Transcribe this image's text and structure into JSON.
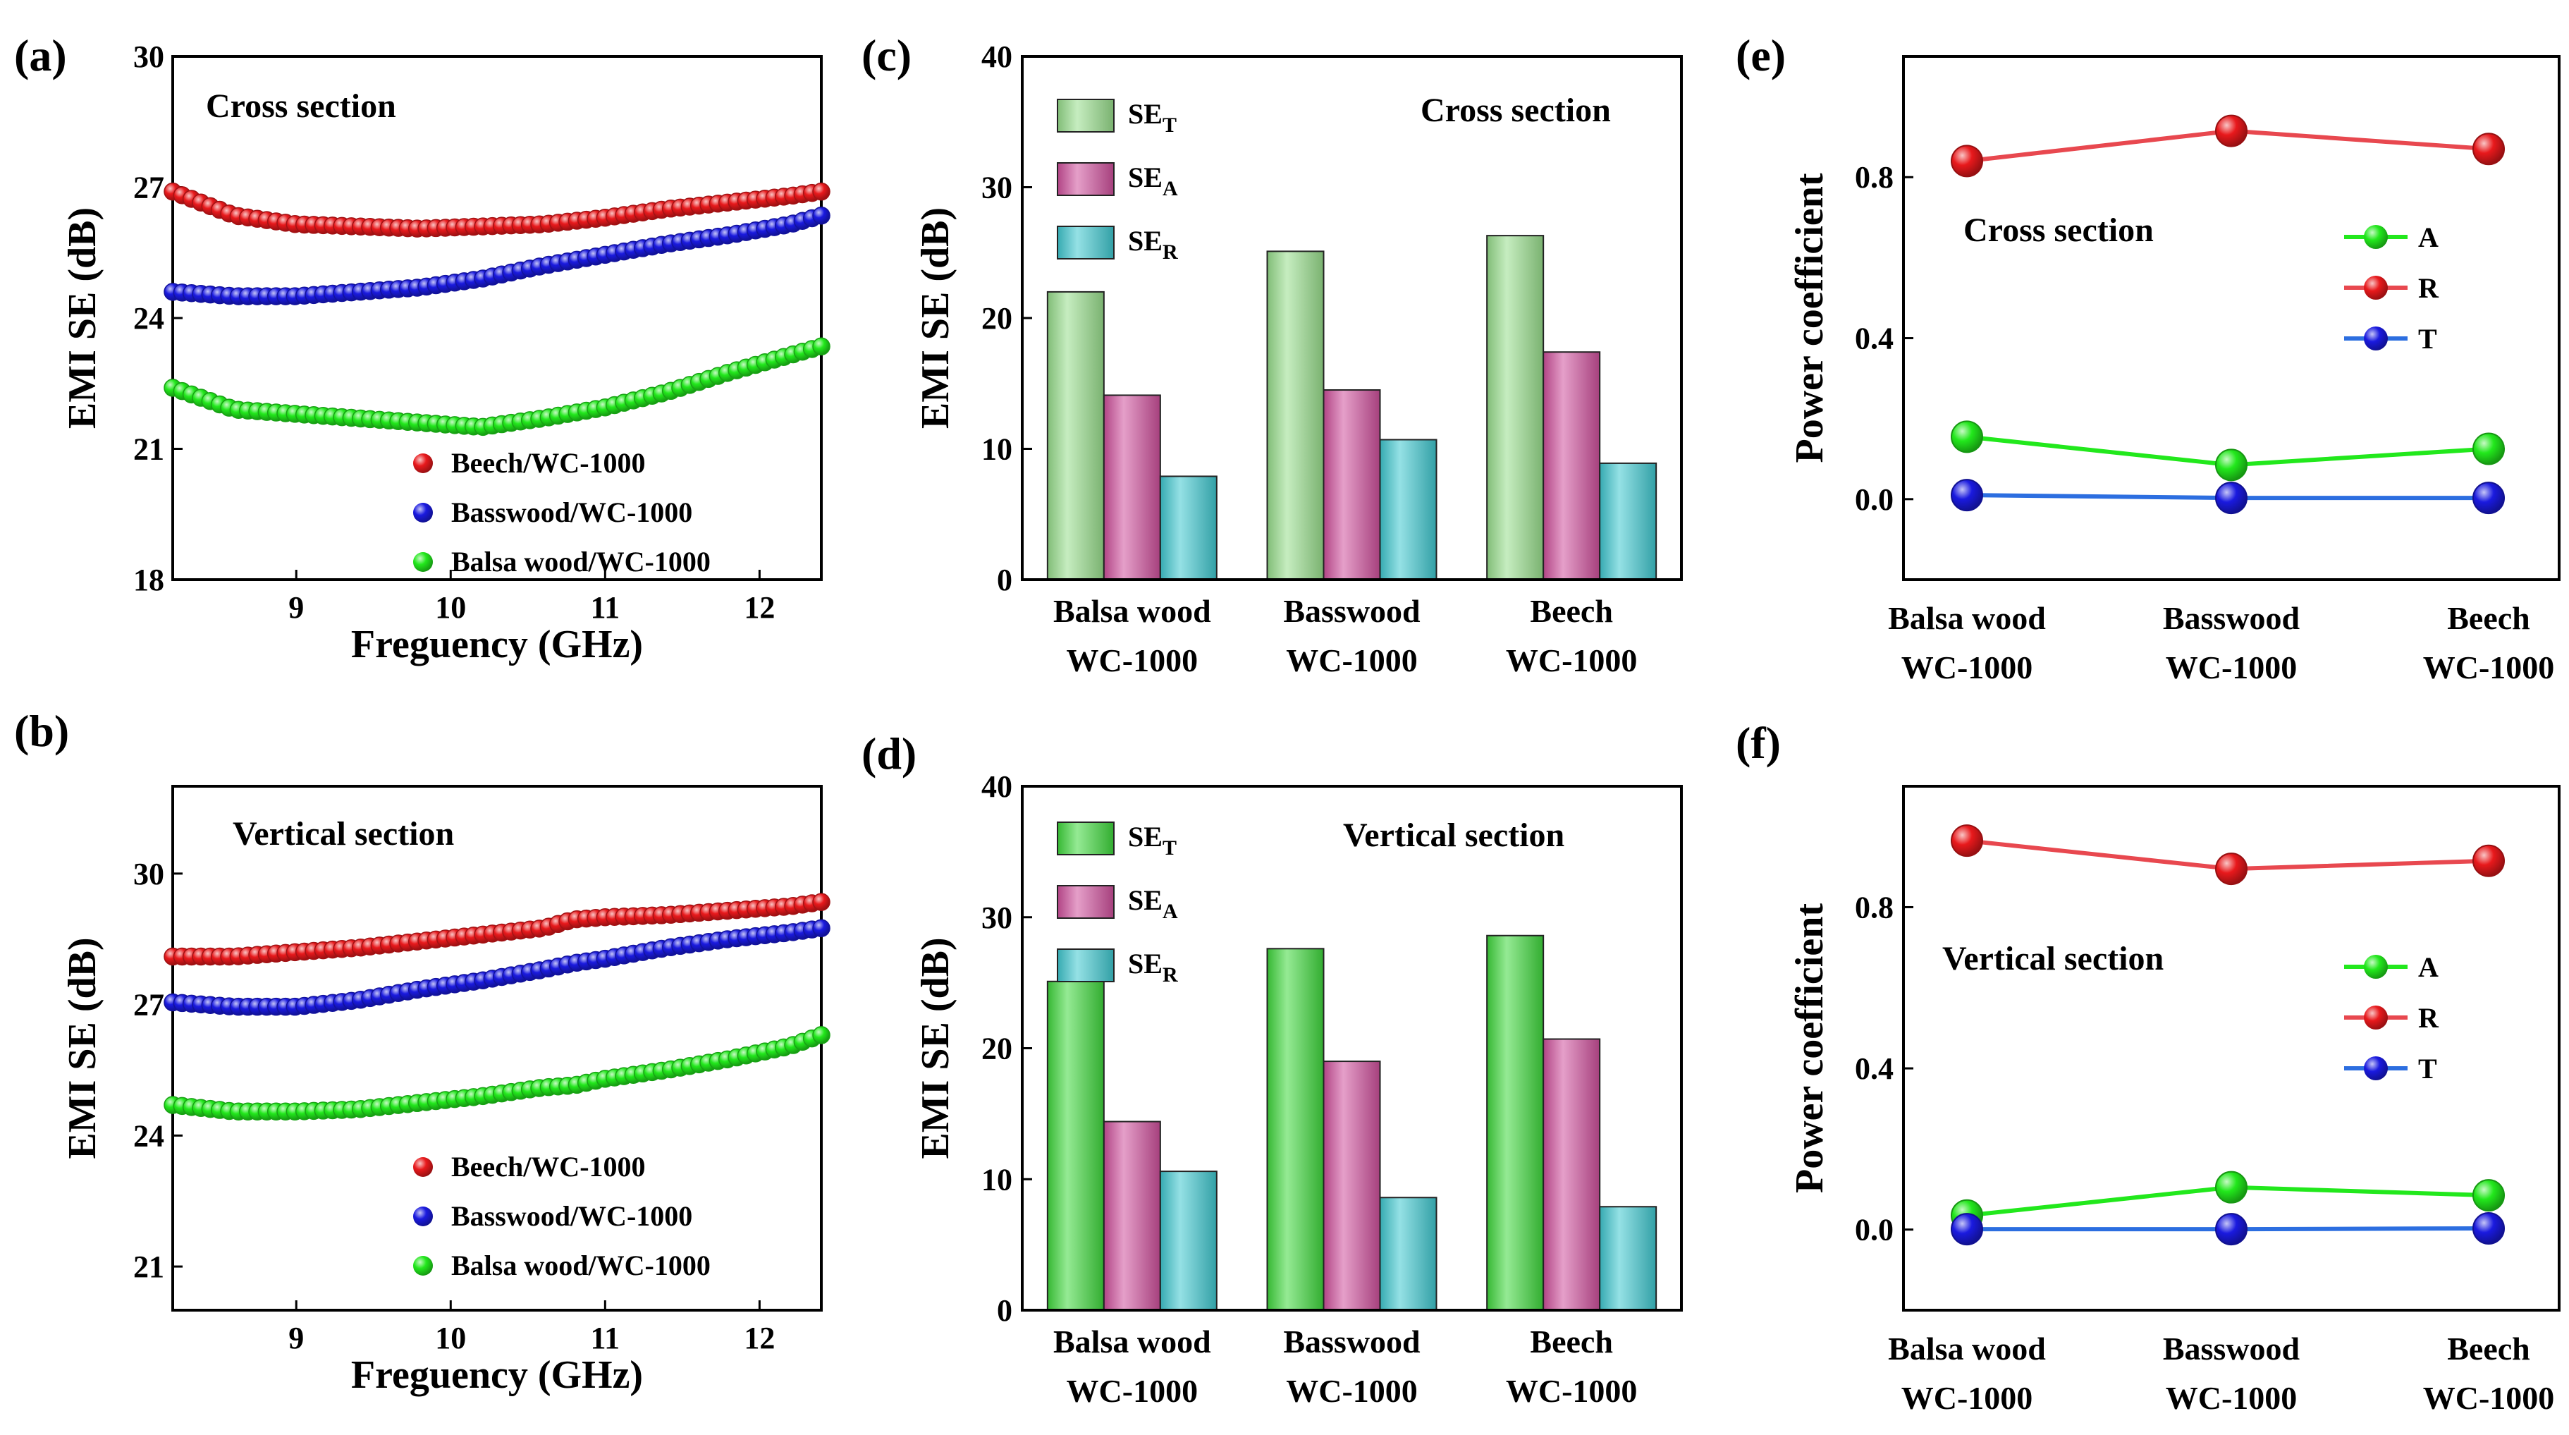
{
  "panels": {
    "a": {
      "letter": "(a)"
    },
    "b": {
      "letter": "(b)"
    },
    "c": {
      "letter": "(c)"
    },
    "d": {
      "letter": "(d)"
    },
    "e": {
      "letter": "(e)"
    },
    "f": {
      "letter": "(f)"
    }
  },
  "colors": {
    "red": "#e8191c",
    "blue": "#1a1adf",
    "green": "#22e81c",
    "bar_total_c": "#98de8c",
    "bar_total_d": "#3fd83c",
    "bar_abs": "#d0509c",
    "bar_ref": "#3fc8d0",
    "line_red": "#e8484f",
    "line_blue": "#2c6ee0",
    "line_green": "#22e81c"
  },
  "chart_data": [
    {
      "id": "a",
      "type": "line",
      "title": "Cross section",
      "xlabel": "Freguency (GHz)",
      "ylabel": "EMI SE (dB)",
      "xlim": [
        8.2,
        12.4
      ],
      "ylim": [
        18,
        30
      ],
      "xticks": [
        "9",
        "10",
        "11",
        "12"
      ],
      "yticks": [
        "18",
        "21",
        "24",
        "27",
        "30"
      ],
      "x": [
        8.2,
        8.6,
        9.0,
        9.4,
        9.8,
        10.2,
        10.6,
        11.0,
        11.4,
        11.8,
        12.2,
        12.4
      ],
      "series": [
        {
          "name": "Beech/WC-1000",
          "color": "red",
          "values": [
            26.9,
            26.35,
            26.15,
            26.1,
            26.05,
            26.1,
            26.15,
            26.3,
            26.5,
            26.65,
            26.8,
            26.9
          ]
        },
        {
          "name": "Basswood/WC-1000",
          "color": "blue",
          "values": [
            24.6,
            24.5,
            24.5,
            24.6,
            24.7,
            24.9,
            25.2,
            25.45,
            25.7,
            25.9,
            26.15,
            26.35
          ]
        },
        {
          "name": "Balsa wood/WC-1000",
          "color": "green",
          "values": [
            22.4,
            21.9,
            21.8,
            21.7,
            21.6,
            21.5,
            21.7,
            21.95,
            22.3,
            22.75,
            23.15,
            23.35
          ]
        }
      ]
    },
    {
      "id": "b",
      "type": "line",
      "title": "Vertical section",
      "xlabel": "Freguency (GHz)",
      "ylabel": "EMI SE (dB)",
      "xlim": [
        8.2,
        12.4
      ],
      "ylim": [
        20,
        32
      ],
      "xticks": [
        "9",
        "10",
        "11",
        "12"
      ],
      "yticks": [
        "21",
        "24",
        "27",
        "30"
      ],
      "x": [
        8.2,
        8.6,
        9.0,
        9.4,
        9.8,
        10.2,
        10.6,
        10.8,
        11.0,
        11.4,
        11.8,
        12.2,
        12.4
      ],
      "series": [
        {
          "name": "Beech/WC-1000",
          "color": "red",
          "values": [
            28.1,
            28.1,
            28.2,
            28.3,
            28.45,
            28.6,
            28.75,
            28.95,
            29.0,
            29.05,
            29.15,
            29.25,
            29.35
          ]
        },
        {
          "name": "Basswood/WC-1000",
          "color": "blue",
          "values": [
            27.05,
            26.95,
            26.95,
            27.1,
            27.35,
            27.55,
            27.8,
            27.95,
            28.05,
            28.3,
            28.5,
            28.65,
            28.75
          ]
        },
        {
          "name": "Balsa wood/WC-1000",
          "color": "green",
          "values": [
            24.7,
            24.55,
            24.55,
            24.6,
            24.75,
            24.9,
            25.1,
            25.15,
            25.3,
            25.5,
            25.75,
            26.05,
            26.3
          ]
        }
      ]
    },
    {
      "id": "c",
      "type": "bar",
      "title": "Cross section",
      "xlabel": "",
      "ylabel": "EMI SE (dB)",
      "ylim": [
        0,
        40
      ],
      "yticks": [
        "0",
        "10",
        "20",
        "30",
        "40"
      ],
      "categories": [
        [
          "Balsa wood",
          "WC-1000"
        ],
        [
          "Basswood",
          "WC-1000"
        ],
        [
          "Beech",
          "WC-1000"
        ]
      ],
      "series": [
        {
          "name": "SE",
          "sub": "T",
          "color": "bar_total_c",
          "values": [
            22.0,
            25.1,
            26.3
          ]
        },
        {
          "name": "SE",
          "sub": "A",
          "color": "bar_abs",
          "values": [
            14.1,
            14.5,
            17.4
          ]
        },
        {
          "name": "SE",
          "sub": "R",
          "color": "bar_ref",
          "values": [
            7.9,
            10.7,
            8.9
          ]
        }
      ]
    },
    {
      "id": "d",
      "type": "bar",
      "title": "Vertical section",
      "xlabel": "",
      "ylabel": "EMI SE (dB)",
      "ylim": [
        0,
        40
      ],
      "yticks": [
        "0",
        "10",
        "20",
        "30",
        "40"
      ],
      "categories": [
        [
          "Balsa wood",
          "WC-1000"
        ],
        [
          "Basswood",
          "WC-1000"
        ],
        [
          "Beech",
          "WC-1000"
        ]
      ],
      "series": [
        {
          "name": "SE",
          "sub": "T",
          "color": "bar_total_d",
          "values": [
            25.1,
            27.6,
            28.6
          ]
        },
        {
          "name": "SE",
          "sub": "A",
          "color": "bar_abs",
          "values": [
            14.4,
            19.0,
            20.7
          ]
        },
        {
          "name": "SE",
          "sub": "R",
          "color": "bar_ref",
          "values": [
            10.6,
            8.6,
            7.9
          ]
        }
      ]
    },
    {
      "id": "e",
      "type": "line",
      "title": "Cross section",
      "xlabel": "",
      "ylabel": "Power coefficient",
      "ylim": [
        -0.2,
        1.1
      ],
      "yticks": [
        "0.0",
        "0.4",
        "0.8"
      ],
      "categories": [
        [
          "Balsa wood",
          "WC-1000"
        ],
        [
          "Basswood",
          "WC-1000"
        ],
        [
          "Beech",
          "WC-1000"
        ]
      ],
      "series": [
        {
          "name": "A",
          "color": "green",
          "line": "line_green",
          "values": [
            0.155,
            0.085,
            0.125
          ]
        },
        {
          "name": "R",
          "color": "red",
          "line": "line_red",
          "values": [
            0.84,
            0.915,
            0.87
          ]
        },
        {
          "name": "T",
          "color": "blue",
          "line": "line_blue",
          "values": [
            0.01,
            0.003,
            0.003
          ]
        }
      ]
    },
    {
      "id": "f",
      "type": "line",
      "title": "Vertical section",
      "xlabel": "",
      "ylabel": "Power coefficient",
      "ylim": [
        -0.2,
        1.1
      ],
      "yticks": [
        "0.0",
        "0.4",
        "0.8"
      ],
      "categories": [
        [
          "Balsa wood",
          "WC-1000"
        ],
        [
          "Basswood",
          "WC-1000"
        ],
        [
          "Beech",
          "WC-1000"
        ]
      ],
      "series": [
        {
          "name": "A",
          "color": "green",
          "line": "line_green",
          "values": [
            0.035,
            0.105,
            0.085
          ]
        },
        {
          "name": "R",
          "color": "red",
          "line": "line_red",
          "values": [
            0.965,
            0.895,
            0.915
          ]
        },
        {
          "name": "T",
          "color": "blue",
          "line": "line_blue",
          "values": [
            0.001,
            0.001,
            0.003
          ]
        }
      ]
    }
  ]
}
